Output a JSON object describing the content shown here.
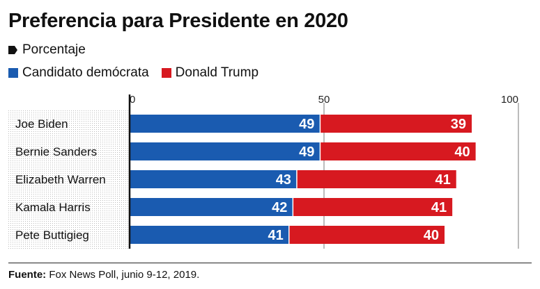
{
  "title": "Preferencia para Presidente en 2020",
  "subtitle": "Porcentaje",
  "legend": {
    "democrat_label": "Candidato demócrata",
    "trump_label": "Donald Trump"
  },
  "colors": {
    "democrat": "#1a5bb0",
    "trump": "#d71920"
  },
  "source": {
    "label": "Fuente:",
    "text": "Fox News Poll, junio 9-12, 2019."
  },
  "chart_data": {
    "type": "bar",
    "orientation": "horizontal",
    "stacked": true,
    "categories": [
      "Joe Biden",
      "Bernie Sanders",
      "Elizabeth Warren",
      "Kamala Harris",
      "Pete Buttigieg"
    ],
    "series": [
      {
        "name": "Candidato demócrata",
        "values": [
          49,
          49,
          43,
          42,
          41
        ]
      },
      {
        "name": "Donald Trump",
        "values": [
          39,
          40,
          41,
          41,
          40
        ]
      }
    ],
    "xlim": [
      0,
      100
    ],
    "xticks": [
      "0",
      "50",
      "100"
    ],
    "grid": true
  }
}
